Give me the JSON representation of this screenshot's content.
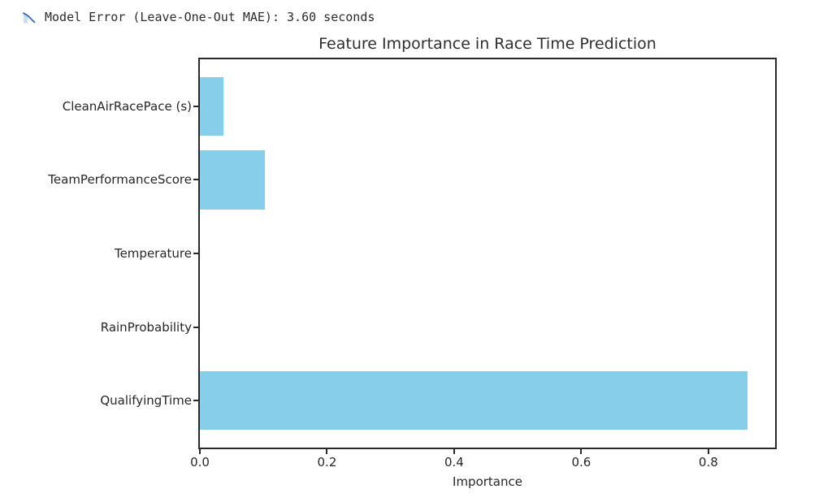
{
  "header": {
    "icon": "chart-decreasing",
    "text": "Model Error (Leave-One-Out MAE): 3.60 seconds"
  },
  "chart_data": {
    "type": "bar",
    "orientation": "horizontal",
    "title": "Feature Importance in Race Time Prediction",
    "xlabel": "Importance",
    "ylabel": "",
    "categories": [
      "CleanAirRacePace (s)",
      "TeamPerformanceScore",
      "Temperature",
      "RainProbability",
      "QualifyingTime"
    ],
    "values": [
      0.037,
      0.102,
      0.0,
      0.0,
      0.862
    ],
    "categories_order": "top-to-bottom",
    "xtick_labels": [
      "0.0",
      "0.2",
      "0.4",
      "0.6",
      "0.8"
    ],
    "xtick_values": [
      0.0,
      0.2,
      0.4,
      0.6,
      0.8
    ],
    "xlim": [
      0,
      0.905
    ],
    "grid": false,
    "legend": "none",
    "bar_color": "#87CEEB",
    "axis_color": "#2a2a2a",
    "background_color": "#ffffff"
  }
}
